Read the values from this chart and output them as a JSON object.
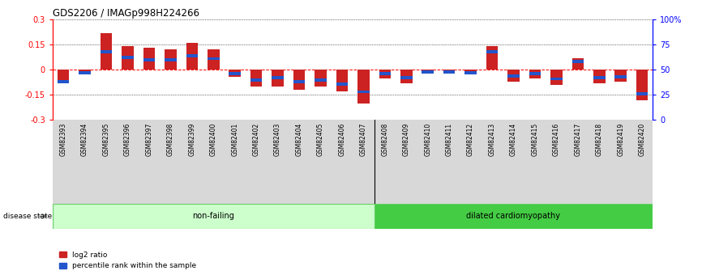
{
  "title": "GDS2206 / IMAGp998H224266",
  "samples": [
    "GSM82393",
    "GSM82394",
    "GSM82395",
    "GSM82396",
    "GSM82397",
    "GSM82398",
    "GSM82399",
    "GSM82400",
    "GSM82401",
    "GSM82402",
    "GSM82403",
    "GSM82404",
    "GSM82405",
    "GSM82406",
    "GSM82407",
    "GSM82408",
    "GSM82409",
    "GSM82410",
    "GSM82411",
    "GSM82412",
    "GSM82413",
    "GSM82414",
    "GSM82415",
    "GSM82416",
    "GSM82417",
    "GSM82418",
    "GSM82419",
    "GSM82420"
  ],
  "log2_ratio": [
    -0.07,
    -0.02,
    0.22,
    0.14,
    0.13,
    0.12,
    0.16,
    0.12,
    -0.04,
    -0.1,
    -0.1,
    -0.12,
    -0.1,
    -0.13,
    -0.2,
    -0.05,
    -0.08,
    -0.02,
    -0.02,
    -0.02,
    0.14,
    -0.07,
    -0.05,
    -0.09,
    0.07,
    -0.08,
    -0.07,
    -0.18
  ],
  "percentile": [
    38,
    47,
    68,
    62,
    60,
    60,
    64,
    61,
    46,
    40,
    42,
    38,
    40,
    36,
    28,
    46,
    42,
    48,
    48,
    47,
    68,
    44,
    46,
    41,
    58,
    42,
    43,
    26
  ],
  "non_failing_count": 15,
  "group_labels": [
    "non-failing",
    "dilated cardiomyopathy"
  ],
  "ylim": [
    -0.3,
    0.3
  ],
  "yticks": [
    -0.3,
    -0.15,
    0.0,
    0.15,
    0.3
  ],
  "right_yticks": [
    0,
    25,
    50,
    75,
    100
  ],
  "right_ytick_labels": [
    "0",
    "25",
    "50",
    "75",
    "100%"
  ],
  "bar_color_red": "#cc2222",
  "bar_color_blue": "#2255cc",
  "group_color_nf_light": "#ccffcc",
  "group_color_nf_edge": "#66cc66",
  "group_color_dc": "#44cc44",
  "bar_width": 0.55,
  "blue_bar_height": 0.018,
  "background_color": "#ffffff",
  "label_bg_color": "#d8d8d8"
}
